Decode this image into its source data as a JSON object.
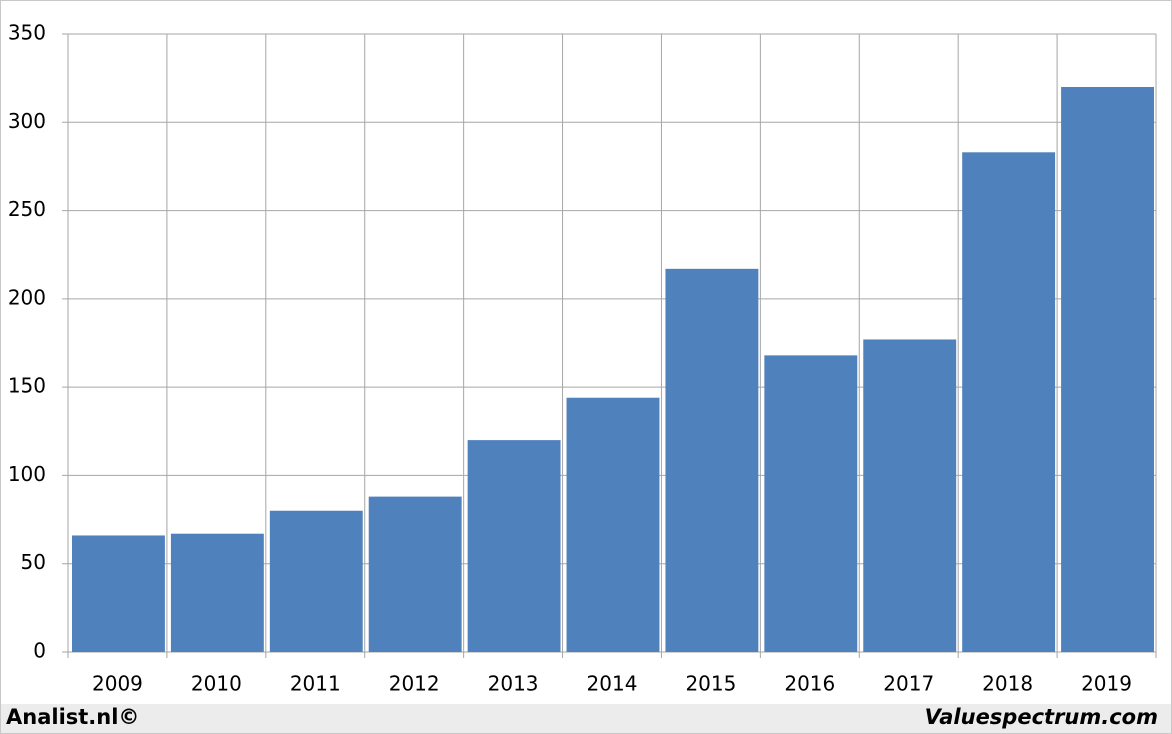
{
  "chart_data": {
    "type": "bar",
    "categories": [
      "2009",
      "2010",
      "2011",
      "2012",
      "2013",
      "2014",
      "2015",
      "2016",
      "2017",
      "2018",
      "2019"
    ],
    "values": [
      66,
      67,
      80,
      88,
      120,
      144,
      217,
      168,
      177,
      283,
      320
    ],
    "color": "#4f81bd",
    "ylim": [
      0,
      350
    ],
    "yticks": [
      0,
      50,
      100,
      150,
      200,
      250,
      300,
      350
    ],
    "grid": true
  },
  "footer": {
    "left": "Analist.nl©",
    "right": "Valuespectrum.com"
  }
}
